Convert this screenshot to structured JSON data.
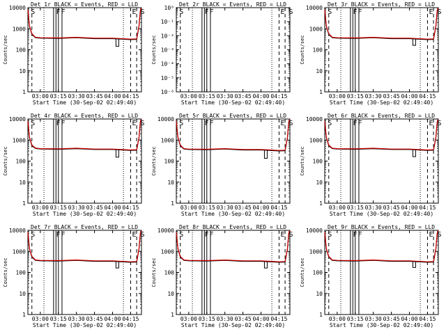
{
  "colors": {
    "events": "#000000",
    "lld": "#d00000",
    "background": "#ffffff",
    "axes": "#000000"
  },
  "chart_data": [
    {
      "type": "line",
      "title": "Det 1r BLACK = Events, RED = LLD",
      "xlabel": "Start Time (30-Sep-02 02:49:40)",
      "ylabel": "Counts/sec",
      "y_scale": "log",
      "ylim": [
        1,
        12000
      ],
      "x_ticks": [
        "03:00",
        "03:15",
        "03:30",
        "03:45",
        "04:00",
        "04:15"
      ],
      "y_ticks": [
        "1",
        "10",
        "100",
        "1000",
        "10000"
      ],
      "flags": [
        "S",
        "F",
        "F",
        "E",
        "S"
      ],
      "series": [
        {
          "name": "Events",
          "color": "#000000",
          "dip_time": "04:04",
          "dip_level": 160,
          "x": [
            "02:49:40",
            "02:51",
            "02:53",
            "02:56",
            "03:00",
            "03:15",
            "03:30",
            "03:45",
            "04:00",
            "04:15",
            "04:20",
            "04:22",
            "04:23",
            "04:24"
          ],
          "values": [
            9000,
            1500,
            600,
            420,
            400,
            390,
            420,
            380,
            380,
            340,
            350,
            1500,
            8000,
            11000
          ]
        },
        {
          "name": "LLD",
          "color": "#d00000",
          "x": [
            "02:49:40",
            "02:51",
            "02:53",
            "02:56",
            "03:00",
            "03:15",
            "03:30",
            "03:45",
            "04:00",
            "04:15",
            "04:20",
            "04:22",
            "04:23",
            "04:24"
          ],
          "values": [
            9500,
            1600,
            650,
            440,
            420,
            410,
            440,
            400,
            400,
            360,
            370,
            1600,
            8500,
            11500
          ]
        }
      ]
    },
    {
      "type": "line",
      "title": "Det 2r BLACK = Events, RED = LLD",
      "xlabel": "Start Time (30-Sep-02 02:49:40)",
      "ylabel": "Counts/sec",
      "y_scale": "log",
      "ylim": [
        1,
        1e-06
      ],
      "x_ticks": [
        "03:00",
        "03:15",
        "03:30",
        "03:45",
        "04:00",
        "04:15"
      ],
      "y_ticks": [
        "10⁻⁶",
        "10⁻⁵",
        "10⁻⁴",
        "10⁻³",
        "10⁻²",
        "10⁻¹",
        "10⁰"
      ],
      "flags": [
        "S",
        "F",
        "F",
        "E",
        "S"
      ],
      "series": []
    },
    {
      "type": "line",
      "title": "Det 3r BLACK = Events, RED = LLD",
      "xlabel": "Start Time (30-Sep-02 02:49:40)",
      "ylabel": "Counts/sec",
      "y_scale": "log",
      "ylim": [
        1,
        12000
      ],
      "x_ticks": [
        "03:00",
        "03:15",
        "03:30",
        "03:45",
        "04:00",
        "04:15"
      ],
      "y_ticks": [
        "1",
        "10",
        "100",
        "1000",
        "10000"
      ],
      "flags": [
        "S",
        "F",
        "F",
        "E",
        "S"
      ],
      "series": [
        {
          "name": "Events",
          "color": "#000000",
          "dip_time": "04:04",
          "dip_level": 180,
          "x": [
            "02:49:40",
            "02:51",
            "02:53",
            "02:56",
            "03:00",
            "03:15",
            "03:30",
            "03:45",
            "04:00",
            "04:15",
            "04:20",
            "04:22",
            "04:23",
            "04:24"
          ],
          "values": [
            9000,
            1500,
            600,
            420,
            400,
            390,
            420,
            380,
            380,
            340,
            350,
            1500,
            8000,
            11000
          ]
        },
        {
          "name": "LLD",
          "color": "#d00000",
          "x": [
            "02:49:40",
            "02:51",
            "02:53",
            "02:56",
            "03:00",
            "03:15",
            "03:30",
            "03:45",
            "04:00",
            "04:15",
            "04:20",
            "04:22",
            "04:23",
            "04:24"
          ],
          "values": [
            9500,
            1600,
            650,
            440,
            420,
            410,
            440,
            400,
            400,
            360,
            370,
            1600,
            8500,
            11500
          ]
        }
      ]
    },
    {
      "type": "line",
      "title": "Det 4r BLACK = Events, RED = LLD",
      "xlabel": "Start Time (30-Sep-02 02:49:40)",
      "ylabel": "Counts/sec",
      "y_scale": "log",
      "ylim": [
        1,
        12000
      ],
      "x_ticks": [
        "03:00",
        "03:15",
        "03:30",
        "03:45",
        "04:00",
        "04:15"
      ],
      "y_ticks": [
        "1",
        "10",
        "100",
        "1000",
        "10000"
      ],
      "flags": [
        "S",
        "F",
        "F",
        "E",
        "S"
      ],
      "series": [
        {
          "name": "Events",
          "color": "#000000",
          "dip_time": "04:04",
          "dip_level": 170,
          "x": [
            "02:49:40",
            "02:51",
            "02:53",
            "02:56",
            "03:00",
            "03:15",
            "03:30",
            "03:45",
            "04:00",
            "04:15",
            "04:20",
            "04:22",
            "04:23",
            "04:24"
          ],
          "values": [
            9000,
            1500,
            600,
            450,
            420,
            410,
            440,
            400,
            400,
            360,
            370,
            1500,
            8000,
            11000
          ]
        },
        {
          "name": "LLD",
          "color": "#d00000",
          "x": [
            "02:49:40",
            "02:51",
            "02:53",
            "02:56",
            "03:00",
            "03:15",
            "03:30",
            "03:45",
            "04:00",
            "04:15",
            "04:20",
            "04:22",
            "04:23",
            "04:24"
          ],
          "values": [
            9500,
            1600,
            650,
            470,
            440,
            430,
            460,
            420,
            420,
            380,
            390,
            1600,
            8500,
            11500
          ]
        }
      ]
    },
    {
      "type": "line",
      "title": "Det 5r BLACK = Events, RED = LLD",
      "xlabel": "Start Time (30-Sep-02 02:49:40)",
      "ylabel": "Counts/sec",
      "y_scale": "log",
      "ylim": [
        1,
        12000
      ],
      "x_ticks": [
        "03:00",
        "03:15",
        "03:30",
        "03:45",
        "04:00",
        "04:15"
      ],
      "y_ticks": [
        "1",
        "10",
        "100",
        "1000",
        "10000"
      ],
      "flags": [
        "S",
        "F",
        "F",
        "E",
        "S"
      ],
      "series": [
        {
          "name": "Events",
          "color": "#000000",
          "dip_time": "04:04",
          "dip_level": 150,
          "x": [
            "02:49:40",
            "02:51",
            "02:53",
            "02:56",
            "03:00",
            "03:15",
            "03:30",
            "03:45",
            "04:00",
            "04:15",
            "04:20",
            "04:22",
            "04:23",
            "04:24"
          ],
          "values": [
            9000,
            1500,
            600,
            420,
            400,
            390,
            420,
            380,
            380,
            340,
            350,
            1500,
            8000,
            11000
          ]
        },
        {
          "name": "LLD",
          "color": "#d00000",
          "x": [
            "02:49:40",
            "02:51",
            "02:53",
            "02:56",
            "03:00",
            "03:15",
            "03:30",
            "03:45",
            "04:00",
            "04:15",
            "04:20",
            "04:22",
            "04:23",
            "04:24"
          ],
          "values": [
            9500,
            1600,
            650,
            440,
            420,
            410,
            440,
            400,
            400,
            360,
            370,
            1600,
            8500,
            11500
          ]
        }
      ]
    },
    {
      "type": "line",
      "title": "Det 6r BLACK = Events, RED = LLD",
      "xlabel": "Start Time (30-Sep-02 02:49:40)",
      "ylabel": "Counts/sec",
      "y_scale": "log",
      "ylim": [
        1,
        12000
      ],
      "x_ticks": [
        "03:00",
        "03:15",
        "03:30",
        "03:45",
        "04:00",
        "04:15"
      ],
      "y_ticks": [
        "1",
        "10",
        "100",
        "1000",
        "10000"
      ],
      "flags": [
        "S",
        "F",
        "F",
        "E",
        "S"
      ],
      "series": [
        {
          "name": "Events",
          "color": "#000000",
          "dip_time": "04:04",
          "dip_level": 180,
          "x": [
            "02:49:40",
            "02:51",
            "02:53",
            "02:56",
            "03:00",
            "03:15",
            "03:30",
            "03:45",
            "04:00",
            "04:15",
            "04:20",
            "04:22",
            "04:23",
            "04:24"
          ],
          "values": [
            9000,
            1500,
            600,
            440,
            420,
            410,
            440,
            400,
            400,
            360,
            370,
            1500,
            8000,
            11000
          ]
        },
        {
          "name": "LLD",
          "color": "#d00000",
          "x": [
            "02:49:40",
            "02:51",
            "02:53",
            "02:56",
            "03:00",
            "03:15",
            "03:30",
            "03:45",
            "04:00",
            "04:15",
            "04:20",
            "04:22",
            "04:23",
            "04:24"
          ],
          "values": [
            9500,
            1600,
            650,
            460,
            440,
            430,
            460,
            420,
            420,
            380,
            390,
            1600,
            8500,
            11500
          ]
        }
      ]
    },
    {
      "type": "line",
      "title": "Det 7r BLACK = Events, RED = LLD",
      "xlabel": "Start Time (30-Sep-02 02:49:40)",
      "ylabel": "Counts/sec",
      "y_scale": "log",
      "ylim": [
        1,
        12000
      ],
      "x_ticks": [
        "03:00",
        "03:15",
        "03:30",
        "03:45",
        "04:00",
        "04:15"
      ],
      "y_ticks": [
        "1",
        "10",
        "100",
        "1000",
        "10000"
      ],
      "flags": [
        "S",
        "F",
        "F",
        "E",
        "S"
      ],
      "series": [
        {
          "name": "Events",
          "color": "#000000",
          "dip_time": "04:04",
          "dip_level": 180,
          "x": [
            "02:49:40",
            "02:51",
            "02:53",
            "02:56",
            "03:00",
            "03:15",
            "03:30",
            "03:45",
            "04:00",
            "04:15",
            "04:20",
            "04:22",
            "04:23",
            "04:24"
          ],
          "values": [
            9000,
            1500,
            600,
            420,
            400,
            390,
            420,
            380,
            380,
            340,
            350,
            1500,
            8000,
            11000
          ]
        },
        {
          "name": "LLD",
          "color": "#d00000",
          "x": [
            "02:49:40",
            "02:51",
            "02:53",
            "02:56",
            "03:00",
            "03:15",
            "03:30",
            "03:45",
            "04:00",
            "04:15",
            "04:20",
            "04:22",
            "04:23",
            "04:24"
          ],
          "values": [
            9500,
            1600,
            650,
            440,
            420,
            410,
            440,
            400,
            400,
            360,
            370,
            1600,
            8500,
            11500
          ]
        }
      ]
    },
    {
      "type": "line",
      "title": "Det 8r BLACK = Events, RED = LLD",
      "xlabel": "Start Time (30-Sep-02 02:49:40)",
      "ylabel": "Counts/sec",
      "y_scale": "log",
      "ylim": [
        1,
        12000
      ],
      "x_ticks": [
        "03:00",
        "03:15",
        "03:30",
        "03:45",
        "04:00",
        "04:15"
      ],
      "y_ticks": [
        "1",
        "10",
        "100",
        "1000",
        "10000"
      ],
      "flags": [
        "S",
        "F",
        "F",
        "E",
        "S"
      ],
      "series": [
        {
          "name": "Events",
          "color": "#000000",
          "dip_time": "04:04",
          "dip_level": 180,
          "x": [
            "02:49:40",
            "02:51",
            "02:53",
            "02:56",
            "03:00",
            "03:15",
            "03:30",
            "03:45",
            "04:00",
            "04:15",
            "04:20",
            "04:22",
            "04:23",
            "04:24"
          ],
          "values": [
            9000,
            1500,
            600,
            420,
            400,
            390,
            420,
            380,
            380,
            340,
            350,
            1500,
            8000,
            11000
          ]
        },
        {
          "name": "LLD",
          "color": "#d00000",
          "x": [
            "02:49:40",
            "02:51",
            "02:53",
            "02:56",
            "03:00",
            "03:15",
            "03:30",
            "03:45",
            "04:00",
            "04:15",
            "04:20",
            "04:22",
            "04:23",
            "04:24"
          ],
          "values": [
            9500,
            1600,
            650,
            440,
            420,
            410,
            440,
            400,
            400,
            360,
            370,
            1600,
            8500,
            11500
          ]
        }
      ]
    },
    {
      "type": "line",
      "title": "Det 9r BLACK = Events, RED = LLD",
      "xlabel": "Start Time (30-Sep-02 02:49:40)",
      "ylabel": "Counts/sec",
      "y_scale": "log",
      "ylim": [
        1,
        12000
      ],
      "x_ticks": [
        "03:00",
        "03:15",
        "03:30",
        "03:45",
        "04:00",
        "04:15"
      ],
      "y_ticks": [
        "1",
        "10",
        "100",
        "1000",
        "10000"
      ],
      "flags": [
        "S",
        "F",
        "F",
        "E",
        "S"
      ],
      "series": [
        {
          "name": "Events",
          "color": "#000000",
          "dip_time": "04:04",
          "dip_level": 190,
          "x": [
            "02:49:40",
            "02:51",
            "02:53",
            "02:56",
            "03:00",
            "03:15",
            "03:30",
            "03:45",
            "04:00",
            "04:15",
            "04:20",
            "04:22",
            "04:23",
            "04:24"
          ],
          "values": [
            9000,
            1500,
            600,
            420,
            400,
            390,
            420,
            380,
            380,
            340,
            350,
            1500,
            8000,
            11000
          ]
        },
        {
          "name": "LLD",
          "color": "#d00000",
          "x": [
            "02:49:40",
            "02:51",
            "02:53",
            "02:56",
            "03:00",
            "03:15",
            "03:30",
            "03:45",
            "04:00",
            "04:15",
            "04:20",
            "04:22",
            "04:23",
            "04:24"
          ],
          "values": [
            9500,
            1600,
            650,
            440,
            420,
            410,
            440,
            400,
            400,
            360,
            370,
            1600,
            8500,
            11500
          ]
        }
      ]
    }
  ]
}
